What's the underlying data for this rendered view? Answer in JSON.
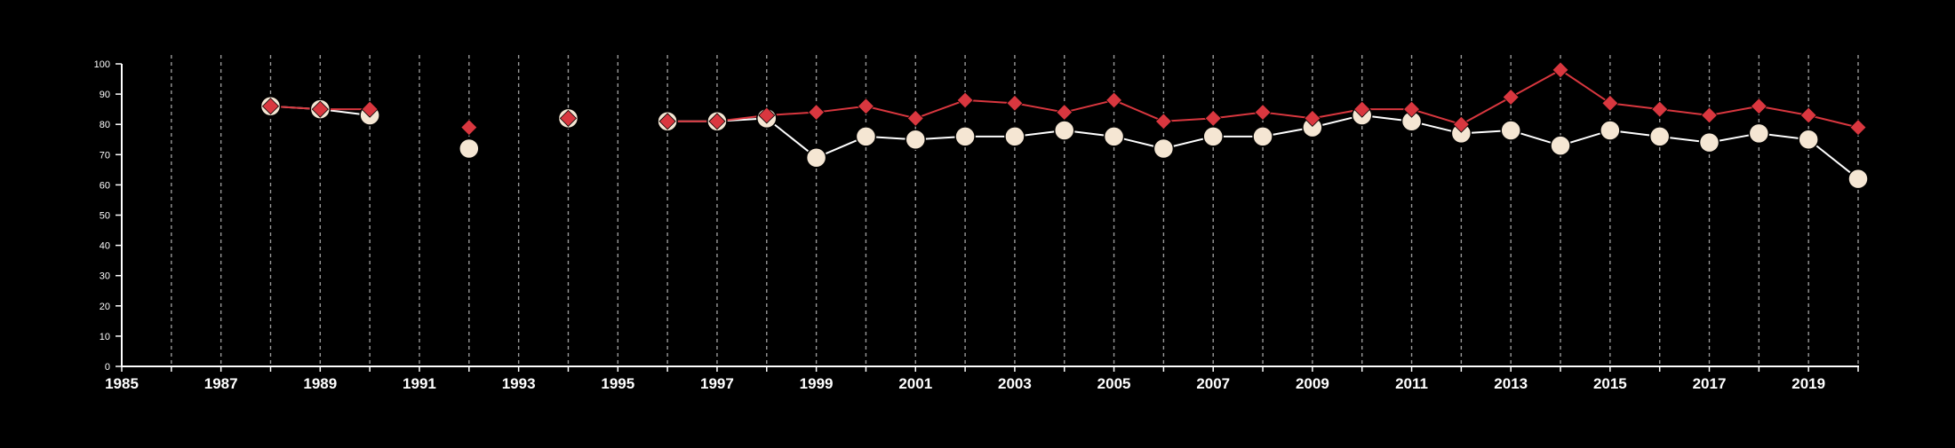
{
  "chart_data": {
    "type": "line",
    "title": "",
    "xlabel": "",
    "ylabel": "",
    "xlim": [
      1985,
      2020
    ],
    "ylim": [
      0,
      100
    ],
    "y_ticks": [
      0,
      10,
      20,
      30,
      40,
      50,
      60,
      70,
      80,
      90,
      100
    ],
    "x_ticks": [
      1985,
      1987,
      1989,
      1991,
      1993,
      1995,
      1997,
      1999,
      2001,
      2003,
      2005,
      2007,
      2009,
      2011,
      2013,
      2015,
      2017,
      2019
    ],
    "vertical_gridlines_dashed": [
      1986,
      1987,
      1988,
      1989,
      1990,
      1991,
      1992,
      1993,
      1994,
      1995,
      1996,
      1997,
      1998,
      1999,
      2000,
      2001,
      2002,
      2003,
      2004,
      2005,
      2006,
      2007,
      2008,
      2009,
      2010,
      2011,
      2012,
      2013,
      2014,
      2015,
      2016,
      2017,
      2018,
      2019,
      2020
    ],
    "background_color": "#000000",
    "series": [
      {
        "marker": "circle",
        "color": "#f5e6d3",
        "line_color": "#ffffff",
        "x": [
          1988,
          1989,
          1990,
          1992,
          1994,
          1996,
          1997,
          1998,
          1999,
          2000,
          2001,
          2002,
          2003,
          2004,
          2005,
          2006,
          2007,
          2008,
          2009,
          2010,
          2011,
          2012,
          2013,
          2014,
          2015,
          2016,
          2017,
          2018,
          2019,
          2020
        ],
        "values": [
          86,
          85,
          83,
          72,
          82,
          81,
          81,
          82,
          69,
          76,
          75,
          76,
          76,
          78,
          76,
          72,
          76,
          76,
          79,
          83,
          81,
          77,
          78,
          73,
          78,
          76,
          74,
          77,
          75,
          62
        ]
      },
      {
        "marker": "diamond",
        "color": "#d9373f",
        "line_color": "#d9373f",
        "x": [
          1988,
          1989,
          1990,
          1992,
          1994,
          1996,
          1997,
          1998,
          1999,
          2000,
          2001,
          2002,
          2003,
          2004,
          2005,
          2006,
          2007,
          2008,
          2009,
          2010,
          2011,
          2012,
          2013,
          2014,
          2015,
          2016,
          2017,
          2018,
          2019,
          2020
        ],
        "values": [
          86,
          85,
          85,
          79,
          82,
          81,
          81,
          83,
          84,
          86,
          82,
          88,
          87,
          84,
          88,
          81,
          82,
          84,
          82,
          85,
          85,
          80,
          89,
          98,
          87,
          85,
          83,
          86,
          83,
          79
        ]
      }
    ]
  }
}
